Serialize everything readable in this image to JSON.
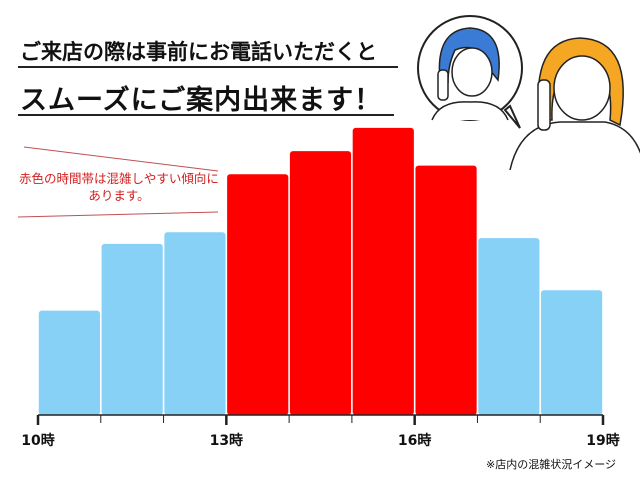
{
  "header": {
    "line1": "ご来店の際は事前にお電話いただくと",
    "line2": "スムーズにご案内出来ます！"
  },
  "note": {
    "line1": "赤色の時間帯は混雑しやすい傾向に",
    "line2": "あります。"
  },
  "caption": "※店内の混雑状況イメージ",
  "illustration": "two-people-phone-call",
  "colors": {
    "busy": "#ff0000",
    "normal": "#87d1f7",
    "note_text": "#d42020"
  },
  "chart_data": {
    "type": "bar",
    "categories": [
      "10-11時",
      "11-12時",
      "12-13時",
      "13-14時",
      "14-15時",
      "15-16時",
      "16-17時",
      "17-18時",
      "18-19時"
    ],
    "values": [
      36,
      59,
      63,
      83,
      91,
      99,
      86,
      61,
      43
    ],
    "busy": [
      false,
      false,
      false,
      true,
      true,
      true,
      true,
      false,
      false
    ],
    "x_tick_labels": [
      "10時",
      "13時",
      "16時",
      "19時"
    ],
    "x_hours": [
      10,
      19
    ],
    "ylim": [
      0,
      100
    ],
    "y_axis_shown": false,
    "grid": false,
    "title": "",
    "xlabel": "",
    "ylabel": ""
  }
}
